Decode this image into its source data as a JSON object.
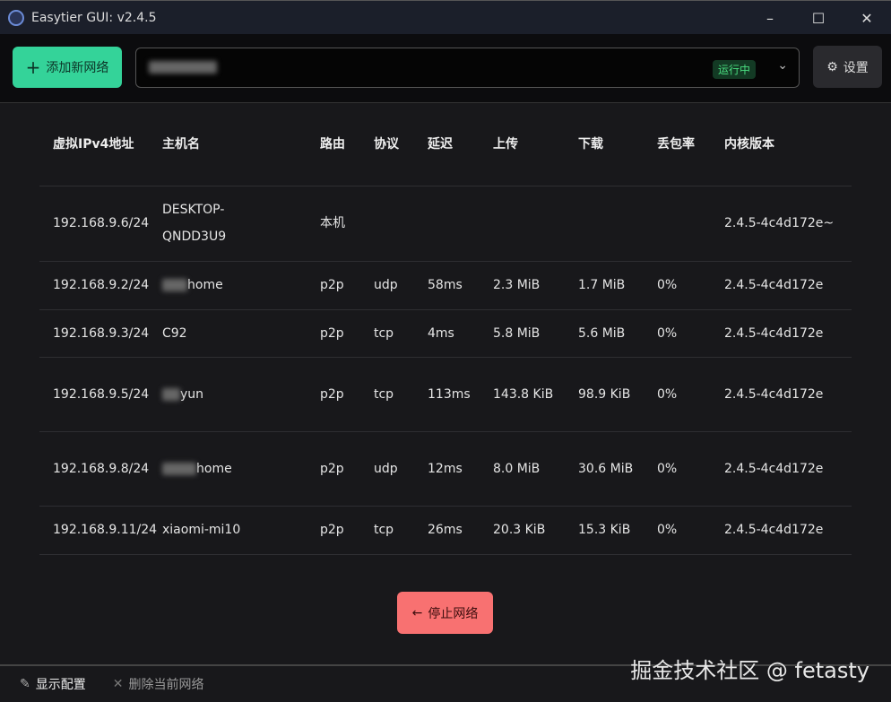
{
  "window": {
    "title": "Easytier GUI: v2.4.5",
    "minimize": "–",
    "maximize": "☐",
    "close": "✕"
  },
  "toolbar": {
    "add_label": "添加新网络",
    "add_icon": "+",
    "status_badge": "运行中",
    "settings_label": "设置",
    "settings_icon": "⚙",
    "chevron": "⌄"
  },
  "table": {
    "headers": [
      "虚拟IPv4地址",
      "主机名",
      "路由",
      "协议",
      "延迟",
      "上传",
      "下载",
      "丢包率",
      "内核版本"
    ],
    "rows": [
      [
        "192.168.9.6/24",
        "DESKTOP-QNDD3U9",
        "本机",
        "",
        "",
        "",
        "",
        "",
        "2.4.5-4c4d172e~"
      ],
      [
        "192.168.9.2/24",
        "home",
        "p2p",
        "udp",
        "58ms",
        "2.3 MiB",
        "1.7 MiB",
        "0%",
        "2.4.5-4c4d172e"
      ],
      [
        "192.168.9.3/24",
        "C92",
        "p2p",
        "tcp",
        "4ms",
        "5.8 MiB",
        "5.6 MiB",
        "0%",
        "2.4.5-4c4d172e"
      ],
      [
        "192.168.9.5/24",
        "yun",
        "p2p",
        "tcp",
        "113ms",
        "143.8 KiB",
        "98.9 KiB",
        "0%",
        "2.4.5-4c4d172e"
      ],
      [
        "192.168.9.8/24",
        "home",
        "p2p",
        "udp",
        "12ms",
        "8.0 MiB",
        "30.6 MiB",
        "0%",
        "2.4.5-4c4d172e"
      ],
      [
        "192.168.9.11/24",
        "xiaomi-mi10",
        "p2p",
        "tcp",
        "26ms",
        "20.3 KiB",
        "15.3 KiB",
        "0%",
        "2.4.5-4c4d172e"
      ]
    ]
  },
  "stop": {
    "label": "停止网络",
    "icon": "←"
  },
  "footer": {
    "show_config": "显示配置",
    "delete_network": "删除当前网络"
  },
  "watermark": "掘金技术社区 @ fetasty",
  "colors": {
    "accent": "#34d399",
    "danger": "#f87171",
    "running": "#4ade80"
  }
}
